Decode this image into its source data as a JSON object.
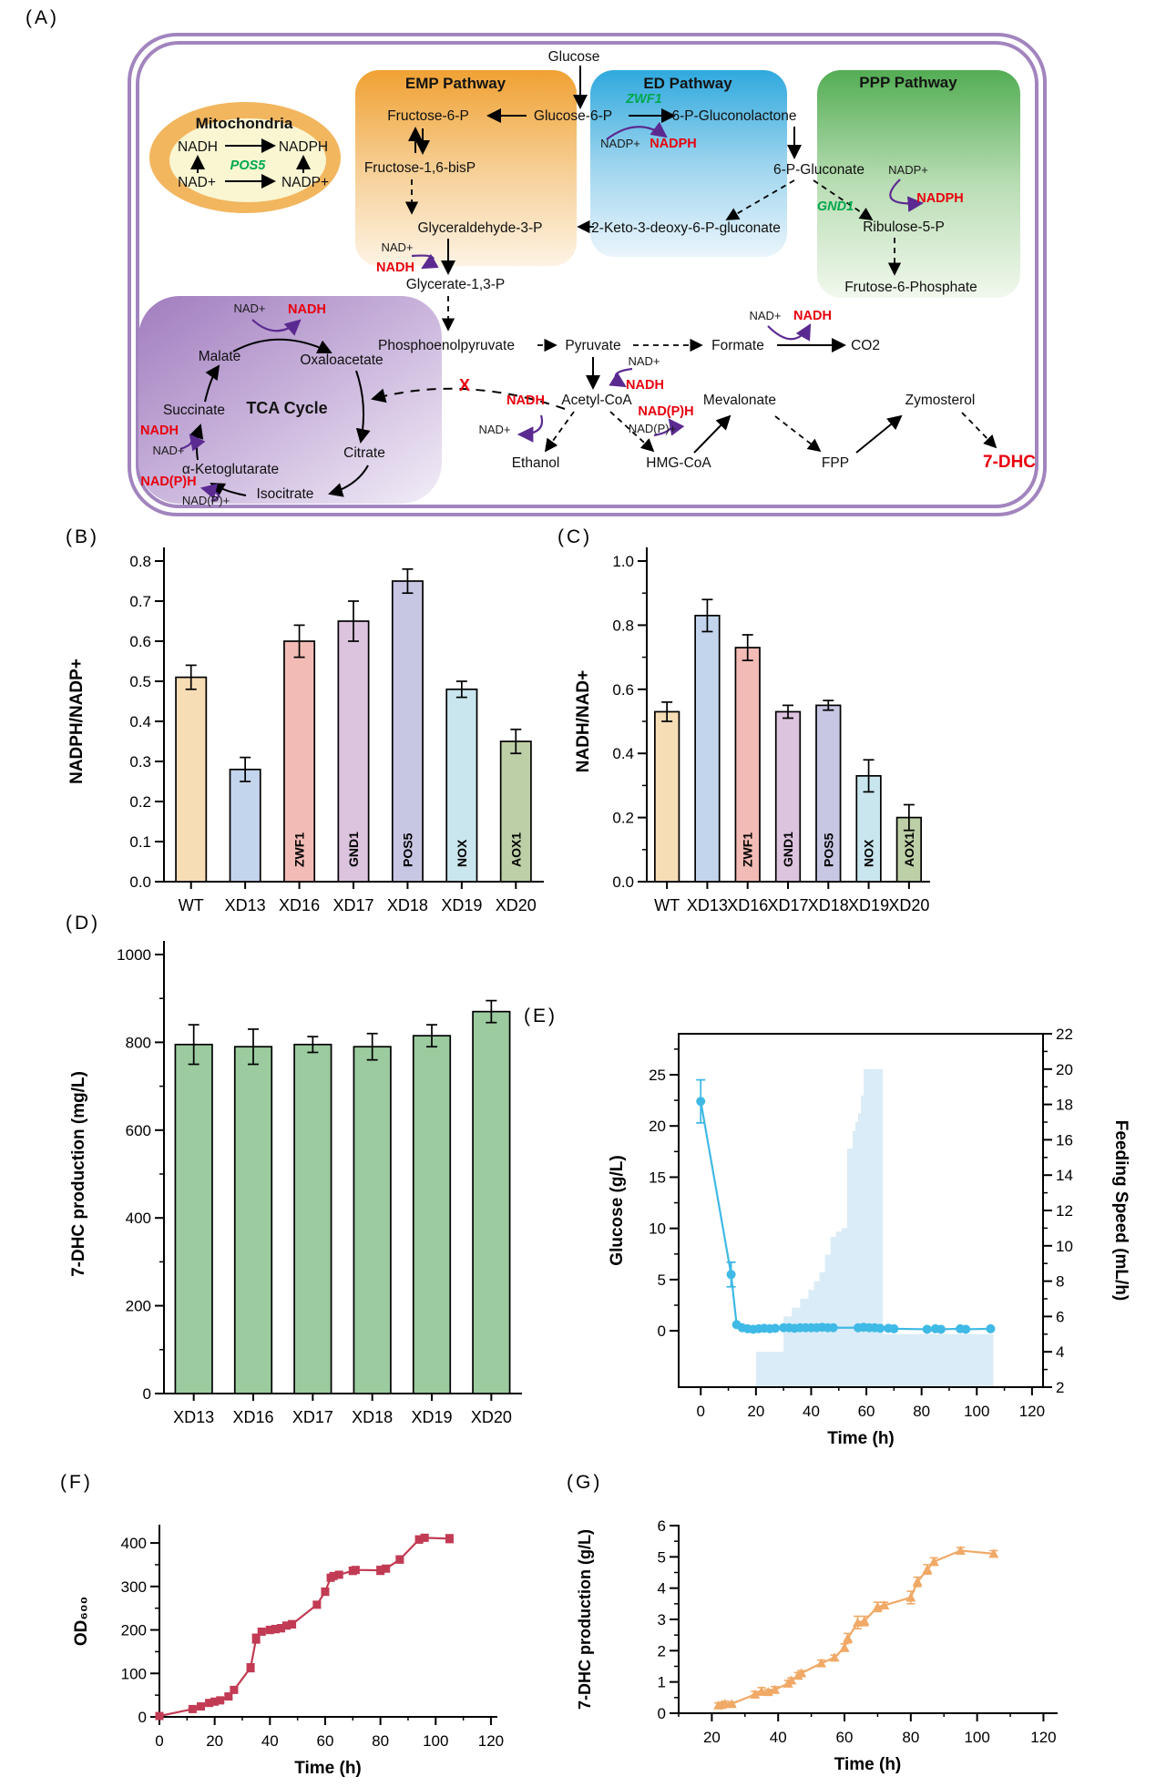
{
  "panel_labels": {
    "A": "(A)",
    "B": "(B)",
    "C": "(C)",
    "D": "(D)",
    "E": "(E)",
    "F": "(F)",
    "G": "(G)"
  },
  "colors": {
    "cofactor_red": "#E8000D",
    "gene_green": "#00A84D",
    "arrow_purple": "#5B2A91",
    "membrane_purple": "#A284BE",
    "emp_orange": "#F0A133",
    "ed_blue": "#2FA9DE",
    "ppp_green": "#53AD54",
    "tca_purple": "#A17CBE",
    "mito_orange": "#F2B65F"
  },
  "pathway": {
    "glucose": "Glucose",
    "emp_title": "EMP Pathway",
    "ed_title": "ED Pathway",
    "ppp_title": "PPP Pathway",
    "mito_title": "Mitochondria",
    "pos5": "POS5",
    "zwf1": "ZWF1",
    "gnd1": "GND1",
    "f6p": "Fructose-6-P",
    "g6p": "Glucose-6-P",
    "f16bp": "Fructose-1,6-bisP",
    "g3p": "Glyceraldehyde-3-P",
    "glycerate": "Glycerate-1,3-P",
    "gluconolactone": "6-P-Gluconolactone",
    "gluconate": "6-P-Gluconate",
    "kdpg": "2-Keto-3-deoxy-6-P-gluconate",
    "ribulose": "Ribulose-5-P",
    "frutose6p": "Frutose-6-Phosphate",
    "pep": "Phosphoenolpyruvate",
    "pyruvate": "Pyruvate",
    "formate": "Formate",
    "co2": "CO2",
    "acetylcoa": "Acetyl-CoA",
    "ethanol": "Ethanol",
    "hmgcoa": "HMG-CoA",
    "mevalonate": "Mevalonate",
    "fpp": "FPP",
    "zymosterol": "Zymosterol",
    "dhc": "7-DHC",
    "tca_title": "TCA Cycle",
    "malate": "Malate",
    "oxaloacetate": "Oxaloacetate",
    "succinate": "Succinate",
    "citrate": "Citrate",
    "isocitrate": "Isocitrate",
    "akg": "α-Ketoglutarate",
    "nadh": "NADH",
    "nadph": "NADPH",
    "nad_plus": "NAD+",
    "nadp_plus": "NADP+",
    "nadph_p": "NAD(P)H",
    "nadp_p": "NAD(P)+",
    "xmark": "X"
  },
  "chart_data": [
    {
      "id": "B",
      "type": "bar",
      "ylabel": "NADPH/NADP+",
      "ylim": [
        0,
        0.8
      ],
      "ymajor": 0.1,
      "yminor": null,
      "ydec": 1,
      "categories": [
        "WT",
        "XD13",
        "XD16",
        "XD17",
        "XD18",
        "XD19",
        "XD20"
      ],
      "values": [
        0.51,
        0.28,
        0.6,
        0.65,
        0.75,
        0.48,
        0.35
      ],
      "errors": [
        0.03,
        0.03,
        0.04,
        0.05,
        0.03,
        0.02,
        0.03
      ],
      "bar_labels": [
        "",
        "",
        "ZWF1",
        "GND1",
        "POS5",
        "NOX",
        "AOX1"
      ],
      "colors": [
        "#F7DDB5",
        "#C3D5EC",
        "#F3BBB5",
        "#DCC3DE",
        "#C7C6E3",
        "#C9E5ED",
        "#BDCFA6"
      ],
      "grid": false,
      "legend": "none"
    },
    {
      "id": "C",
      "type": "bar",
      "ylabel": "NADH/NAD+",
      "ylim": [
        0,
        1.0
      ],
      "ymajor": 0.2,
      "yminor": 0.1,
      "ydec": 1,
      "categories": [
        "WT",
        "XD13",
        "XD16",
        "XD17",
        "XD18",
        "XD19",
        "XD20"
      ],
      "values": [
        0.53,
        0.83,
        0.73,
        0.53,
        0.55,
        0.33,
        0.2
      ],
      "errors": [
        0.03,
        0.05,
        0.04,
        0.02,
        0.015,
        0.05,
        0.04
      ],
      "bar_labels": [
        "",
        "",
        "ZWF1",
        "GND1",
        "POS5",
        "NOX",
        "AOX1"
      ],
      "colors": [
        "#F7DDB5",
        "#C3D5EC",
        "#F3BBB5",
        "#DCC3DE",
        "#C7C6E3",
        "#C9E5ED",
        "#BDCFA6"
      ],
      "grid": false,
      "legend": "none"
    },
    {
      "id": "D",
      "type": "bar",
      "ylabel": "7-DHC production (mg/L)",
      "ylim": [
        0,
        1000
      ],
      "ymajor": 200,
      "yminor": 100,
      "ydec": 0,
      "categories": [
        "XD13",
        "XD16",
        "XD17",
        "XD18",
        "XD19",
        "XD20"
      ],
      "values": [
        795,
        790,
        795,
        790,
        815,
        870
      ],
      "errors": [
        45,
        40,
        18,
        30,
        25,
        25
      ],
      "bar_labels": [
        "",
        "",
        "",
        "",
        "",
        ""
      ],
      "colors": [
        "#9BCB9F",
        "#9BCB9F",
        "#9BCB9F",
        "#9BCB9F",
        "#9BCB9F",
        "#9BCB9F"
      ],
      "grid": false,
      "legend": "none"
    },
    {
      "id": "E",
      "type": "line+area",
      "xlabel": "Time (h)",
      "xlim": [
        -8,
        124
      ],
      "xmajor": 20,
      "xminor": 10,
      "left": {
        "label": "Glucose (g/L)",
        "lim": [
          -5.5,
          29
        ],
        "major": 5,
        "minor": 2.5,
        "tick_min": 0,
        "tick_max": 25
      },
      "right": {
        "label": "Feeding Speed (mL/h)",
        "lim": [
          2,
          22
        ],
        "major": 2,
        "minor": 1
      },
      "line_color": "#3FB9E5",
      "area_color": "#D7EAF6",
      "marker": "circle",
      "glucose": {
        "x": [
          0,
          11,
          13,
          15,
          17,
          19,
          21,
          23,
          25,
          27,
          30,
          32,
          34,
          36,
          38,
          40,
          42,
          44,
          46,
          48,
          57,
          59,
          61,
          63,
          65,
          68,
          70,
          82,
          85,
          87,
          94,
          96,
          105
        ],
        "y": [
          22.4,
          5.5,
          0.6,
          0.3,
          0.2,
          0.15,
          0.2,
          0.25,
          0.2,
          0.25,
          0.3,
          0.3,
          0.25,
          0.3,
          0.3,
          0.3,
          0.3,
          0.35,
          0.3,
          0.3,
          0.3,
          0.35,
          0.3,
          0.3,
          0.25,
          0.25,
          0.2,
          0.15,
          0.2,
          0.15,
          0.2,
          0.15,
          0.2
        ],
        "err": [
          2.1,
          1.2,
          0,
          0,
          0,
          0,
          0,
          0,
          0,
          0,
          0,
          0,
          0,
          0,
          0,
          0,
          0,
          0,
          0,
          0,
          0,
          0,
          0,
          0,
          0,
          0,
          0,
          0,
          0,
          0,
          0,
          0,
          0
        ]
      },
      "feeding_steps": [
        [
          20,
          4
        ],
        [
          30,
          6
        ],
        [
          33,
          6.5
        ],
        [
          36,
          7
        ],
        [
          39,
          7.5
        ],
        [
          41,
          8
        ],
        [
          43,
          8.5
        ],
        [
          45,
          9.5
        ],
        [
          47,
          10.5
        ],
        [
          49,
          10.8
        ],
        [
          51,
          11
        ],
        [
          53,
          15.5
        ],
        [
          55,
          16.5
        ],
        [
          56,
          17
        ],
        [
          57,
          17.5
        ],
        [
          58,
          18.5
        ],
        [
          59,
          20
        ],
        [
          65,
          20
        ],
        [
          66,
          5
        ],
        [
          105,
          5
        ],
        [
          106,
          2
        ]
      ],
      "grid": false,
      "legend": "none"
    },
    {
      "id": "F",
      "type": "line",
      "xlabel": "Time (h)",
      "xlim": [
        0,
        122
      ],
      "xmajor": 20,
      "xminor": 10,
      "ylabel": "OD₆₀₀",
      "ylim": [
        0,
        440
      ],
      "ymajor": 100,
      "yminor": 50,
      "ydec": 0,
      "color": "#C23B54",
      "marker": "square",
      "x": [
        0,
        12,
        15,
        18,
        20,
        22,
        25,
        27,
        33,
        35,
        37,
        40,
        42,
        44,
        46,
        48,
        57,
        60,
        62,
        63,
        65,
        70,
        71,
        80,
        82,
        87,
        94,
        96,
        105
      ],
      "y": [
        2,
        18,
        24,
        32,
        35,
        38,
        47,
        62,
        113,
        180,
        196,
        200,
        202,
        204,
        210,
        213,
        258,
        288,
        320,
        324,
        327,
        336,
        338,
        337,
        341,
        362,
        408,
        412,
        410
      ],
      "err": [
        2,
        4,
        4,
        4,
        4,
        4,
        5,
        6,
        9,
        10,
        7,
        8,
        8,
        8,
        7,
        8,
        7,
        8,
        7,
        6,
        6,
        8,
        7,
        9,
        7,
        8,
        8,
        7,
        9
      ],
      "grid": false,
      "legend": "none"
    },
    {
      "id": "G",
      "type": "line",
      "xlabel": "Time (h)",
      "xlim": [
        10,
        124
      ],
      "xmajor": 20,
      "xminor": 10,
      "ylabel": "7-DHC production (g/L)",
      "ylim": [
        0,
        6
      ],
      "ymajor": 1,
      "yminor": 0.5,
      "ydec": 0,
      "color": "#F0A966",
      "marker": "triangle",
      "x": [
        22,
        23,
        24,
        26,
        33,
        35,
        37,
        39,
        43,
        44,
        46,
        47,
        53,
        57,
        60,
        61,
        64,
        66,
        70,
        72,
        80,
        82,
        85,
        87,
        95,
        105
      ],
      "y": [
        0.25,
        0.27,
        0.3,
        0.3,
        0.6,
        0.7,
        0.68,
        0.75,
        0.95,
        1.05,
        1.2,
        1.28,
        1.6,
        1.78,
        2.1,
        2.4,
        2.9,
        2.95,
        3.4,
        3.45,
        3.7,
        4.2,
        4.6,
        4.85,
        5.2,
        5.1
      ],
      "err": [
        0.08,
        0.07,
        0.08,
        0.06,
        0.1,
        0.12,
        0.08,
        0.1,
        0.1,
        0.08,
        0.1,
        0.08,
        0.1,
        0.08,
        0.12,
        0.15,
        0.2,
        0.15,
        0.15,
        0.1,
        0.2,
        0.15,
        0.15,
        0.12,
        0.1,
        0.1
      ],
      "grid": false,
      "legend": "none"
    }
  ]
}
